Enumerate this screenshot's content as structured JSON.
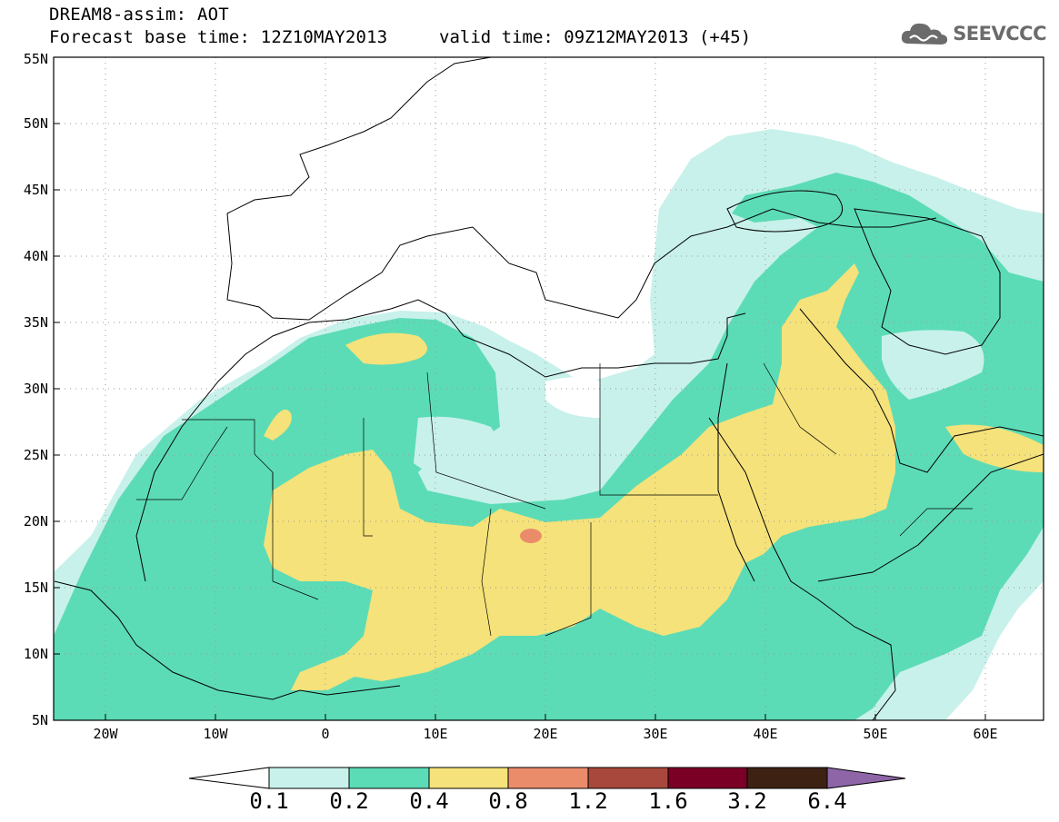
{
  "header": {
    "title": "DREAM8-assim: AOT",
    "base_time": "Forecast base time: 12Z10MAY2013",
    "valid_time": "valid time: 09Z12MAY2013 (+45)"
  },
  "logo": {
    "text": "SEEVCCC",
    "icon": "cloud-icon"
  },
  "map": {
    "lon_range": [
      -25,
      65
    ],
    "lat_range": [
      5,
      55
    ],
    "lat_labels": [
      "5N",
      "10N",
      "15N",
      "20N",
      "25N",
      "30N",
      "35N",
      "40N",
      "45N",
      "50N",
      "55N"
    ],
    "lon_labels": [
      "20W",
      "10W",
      "0",
      "10E",
      "20E",
      "30E",
      "40E",
      "50E",
      "60E"
    ]
  },
  "colorbar": {
    "bounds": [
      "0.1",
      "0.2",
      "0.4",
      "0.8",
      "1.2",
      "1.6",
      "3.2",
      "6.4"
    ],
    "colors": [
      "#c8f1eb",
      "#5cdcb6",
      "#f5e27a",
      "#ea8c6a",
      "#a8473b",
      "#7a0026",
      "#3d2214",
      "#8e66a8"
    ],
    "under_color": "#ffffff"
  }
}
